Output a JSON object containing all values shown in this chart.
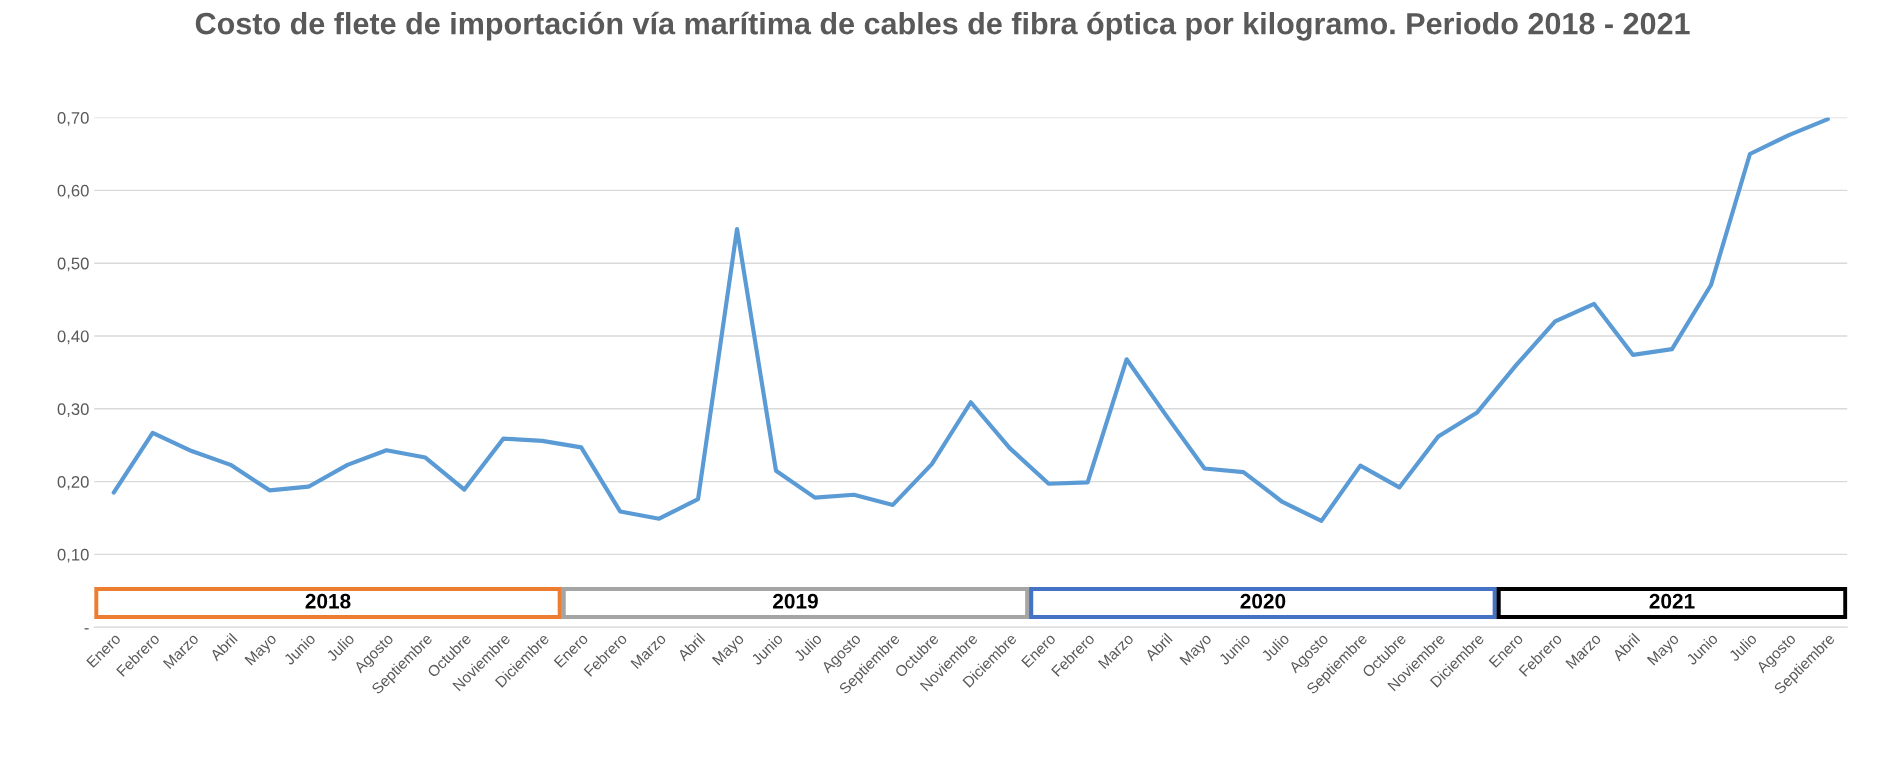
{
  "chart_data": {
    "type": "line",
    "title": "Costo de flete de importación vía marítima de cables de fibra óptica por kilogramo. Periodo 2018 - 2021",
    "x": [
      "2018-01",
      "2018-02",
      "2018-03",
      "2018-04",
      "2018-05",
      "2018-06",
      "2018-07",
      "2018-08",
      "2018-09",
      "2018-10",
      "2018-11",
      "2018-12",
      "2019-01",
      "2019-02",
      "2019-03",
      "2019-04",
      "2019-05",
      "2019-06",
      "2019-07",
      "2019-08",
      "2019-09",
      "2019-10",
      "2019-11",
      "2019-12",
      "2020-01",
      "2020-02",
      "2020-03",
      "2020-04",
      "2020-05",
      "2020-06",
      "2020-07",
      "2020-08",
      "2020-09",
      "2020-10",
      "2020-11",
      "2020-12",
      "2021-01",
      "2021-02",
      "2021-03",
      "2021-04",
      "2021-05",
      "2021-06",
      "2021-07",
      "2021-08",
      "2021-09"
    ],
    "series": [
      {
        "color": "#5b9bd5",
        "values": [
          0.185,
          0.267,
          0.242,
          0.223,
          0.188,
          0.193,
          0.223,
          0.243,
          0.233,
          0.189,
          0.259,
          0.256,
          0.247,
          0.159,
          0.149,
          0.176,
          0.547,
          0.215,
          0.178,
          0.182,
          0.168,
          0.224,
          0.309,
          0.246,
          0.197,
          0.199,
          0.368,
          0.292,
          0.218,
          0.213,
          0.172,
          0.146,
          0.222,
          0.192,
          0.262,
          0.295,
          0.36,
          0.42,
          0.444,
          0.374,
          0.382,
          0.47,
          0.65,
          0.676,
          0.698
        ]
      }
    ],
    "xlim": [
      "2017-12-16",
      "2021-09-16"
    ],
    "xticks": [
      {
        "value": "2018-01",
        "label": "Enero"
      },
      {
        "value": "2018-02",
        "label": "Febrero"
      },
      {
        "value": "2018-03",
        "label": "Marzo"
      },
      {
        "value": "2018-04",
        "label": "Abril"
      },
      {
        "value": "2018-05",
        "label": "Mayo"
      },
      {
        "value": "2018-06",
        "label": "Junio"
      },
      {
        "value": "2018-07",
        "label": "Julio"
      },
      {
        "value": "2018-08",
        "label": "Agosto"
      },
      {
        "value": "2018-09",
        "label": "Septiembre"
      },
      {
        "value": "2018-10",
        "label": "Octubre"
      },
      {
        "value": "2018-11",
        "label": "Noviembre"
      },
      {
        "value": "2018-12",
        "label": "Diciembre"
      },
      {
        "value": "2019-01",
        "label": "Enero"
      },
      {
        "value": "2019-02",
        "label": "Febrero"
      },
      {
        "value": "2019-03",
        "label": "Marzo"
      },
      {
        "value": "2019-04",
        "label": "Abril"
      },
      {
        "value": "2019-05",
        "label": "Mayo"
      },
      {
        "value": "2019-06",
        "label": "Junio"
      },
      {
        "value": "2019-07",
        "label": "Julio"
      },
      {
        "value": "2019-08",
        "label": "Agosto"
      },
      {
        "value": "2019-09",
        "label": "Septiembre"
      },
      {
        "value": "2019-10",
        "label": "Octubre"
      },
      {
        "value": "2019-11",
        "label": "Noviembre"
      },
      {
        "value": "2019-12",
        "label": "Diciembre"
      },
      {
        "value": "2020-01",
        "label": "Enero"
      },
      {
        "value": "2020-02",
        "label": "Febrero"
      },
      {
        "value": "2020-03",
        "label": "Marzo"
      },
      {
        "value": "2020-04",
        "label": "Abril"
      },
      {
        "value": "2020-05",
        "label": "Mayo"
      },
      {
        "value": "2020-06",
        "label": "Junio"
      },
      {
        "value": "2020-07",
        "label": "Julio"
      },
      {
        "value": "2020-08",
        "label": "Agosto"
      },
      {
        "value": "2020-09",
        "label": "Septiembre"
      },
      {
        "value": "2020-10",
        "label": "Octubre"
      },
      {
        "value": "2020-11",
        "label": "Noviembre"
      },
      {
        "value": "2020-12",
        "label": "Diciembre"
      },
      {
        "value": "2021-01",
        "label": "Enero"
      },
      {
        "value": "2021-02",
        "label": "Febrero"
      },
      {
        "value": "2021-03",
        "label": "Marzo"
      },
      {
        "value": "2021-04",
        "label": "Abril"
      },
      {
        "value": "2021-05",
        "label": "Mayo"
      },
      {
        "value": "2021-06",
        "label": "Junio"
      },
      {
        "value": "2021-07",
        "label": "Julio"
      },
      {
        "value": "2021-08",
        "label": "Agosto"
      },
      {
        "value": "2021-09",
        "label": "Septiembre"
      }
    ],
    "ylim": [
      0,
      0.7
    ],
    "yticks": [
      {
        "value": 0,
        "label": "-"
      },
      {
        "value": 0.1,
        "label": "0,10"
      },
      {
        "value": 0.2,
        "label": "0,20"
      },
      {
        "value": 0.3,
        "label": "0,30"
      },
      {
        "value": 0.4,
        "label": "0,40"
      },
      {
        "value": 0.5,
        "label": "0,50"
      },
      {
        "value": 0.6,
        "label": "0,60"
      },
      {
        "value": 0.7,
        "label": "0,70"
      }
    ],
    "annotations": [
      "2018",
      "2019",
      "2020",
      "2021"
    ],
    "grid": "y",
    "legend": false,
    "marker": "none",
    "line_style": "solid"
  }
}
